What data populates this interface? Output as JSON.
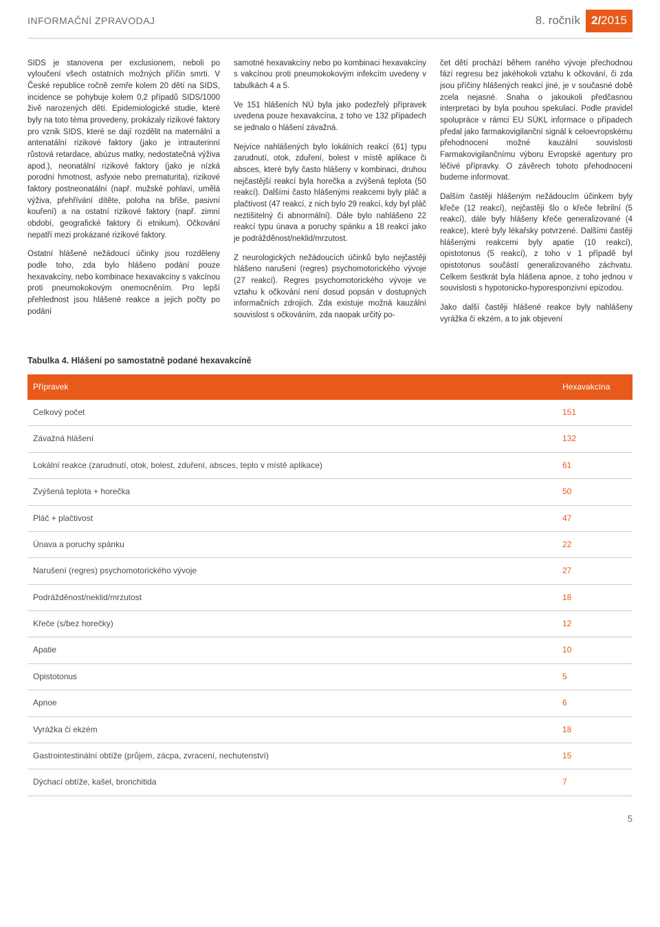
{
  "header": {
    "left": "INFORMAČNÍ ZPRAVODAJ",
    "rocnik": "8. ročník",
    "issue": "2/",
    "year": "2015"
  },
  "columns": {
    "c1": {
      "p1": "SIDS je stanovena per exclusionem, neboli po vyloučení všech ostatních možných příčin smrti. V České republice ročně zemře kolem 20 dětí na SIDS, incidence se pohybuje kolem 0,2 případů SIDS/1000 živě narozených dětí. Epidemiologické studie, které byly na toto téma provedeny, prokázaly rizikové faktory pro vznik SIDS, které se dají rozdělit na maternální a antenatální rizikové faktory (jako je intrauterinní růstová retardace, abúzus matky, nedostatečná výživa apod.), neonatální rizikové faktory (jako je nízká porodní hmotnost, asfyxie nebo prematurita), rizikové faktory postneonatální (např. mužské pohlaví, umělá výživa, přehřívání dítěte, poloha na břiše, pasivní kouření) a na ostatní rizikové faktory (např. zimní období, geografické faktory či etnikum). Očkování nepatří mezi prokázané rizikové faktory.",
      "p2": "Ostatní hlášené nežádoucí účinky jsou rozděleny podle toho, zda bylo hlášeno podání pouze hexavakcíny, nebo kombinace hexavakcíny s vakcínou proti pneumokokovým onemocněním. Pro lepší přehlednost jsou hlášené reakce a jejich počty po podání"
    },
    "c2": {
      "p1": "samotné hexavakcíny nebo po kombinaci hexavakcíny s vakcínou proti pneumokokovým infekcím uvedeny v tabulkách 4 a 5.",
      "p2": "Ve 151 hlášeních NÚ byla jako podezřelý přípravek uvedena pouze hexavakcína, z toho ve 132 případech se jednalo o hlášení závažná.",
      "p3": "Nejvíce nahlášených bylo lokálních reakcí (61) typu zarudnutí, otok, zduření, bolest v místě aplikace či absces, které byly často hlášeny v kombinaci, druhou nejčastější reakcí byla horečka a zvýšená teplota (50 reakcí). Dalšími často hlášenými reakcemi byly pláč a plačtivost (47 reakcí, z nich bylo 29 reakcí, kdy byl pláč neztišitelný či abnormální). Dále bylo nahlášeno 22 reakcí typu únava a poruchy spánku a 18 reakcí jako je podrážděnost/neklid/mrzutost.",
      "p4": "Z neurologických nežádoucích účinků bylo nejčastěji hlášeno narušení (regres) psychomotorického vývoje (27 reakcí). Regres psychomotorického vývoje ve vztahu k očkování není dosud popsán v dostupných informačních zdrojích. Zda existuje možná kauzální souvislost s očkováním, zda naopak určitý po-"
    },
    "c3": {
      "p1": "čet dětí prochází během raného vývoje přechodnou fází regresu bez jakéhokoli vztahu k očkování, či zda jsou příčiny hlášených reakcí jiné, je v současné době zcela nejasné. Snaha o jakoukoli předčasnou interpretaci by byla pouhou spekulací. Podle pravidel spolupráce v rámci EU SÚKL informace o případech předal jako farmakovigilanční signál k celoevropskému přehodnocení možné kauzální souvislosti Farmakovigilančnímu výboru Evropské agentury pro léčivé přípravky. O závěrech tohoto přehodnocení budeme informovat.",
      "p2": "Dalším častěji hlášeným nežádoucím účinkem byly křeče (12 reakcí), nejčastěji šlo o křeče febrilní (5 reakcí), dále byly hlášeny křeče generalizované (4 reakce), které byly lékařsky potvrzené. Dalšími častěji hlášenými reakcemi byly apatie (10 reakcí), opistotonus (5 reakcí), z toho v 1 případě byl opistotonus součástí generalizovaného záchvatu. Celkem šestkrát byla hlášena apnoe, z toho jednou v souvislosti s hypotonicko-hyporesponzivní epizodou.",
      "p3": "Jako další častěji hlášené reakce byly nahlášeny vyrážka či ekzém, a to jak objevení"
    }
  },
  "table": {
    "caption": "Tabulka 4. Hlášení po samostatně podané hexavakcíně",
    "head": {
      "c1": "Přípravek",
      "c2": "Hexavakcína"
    },
    "rows": [
      {
        "label": "Celkový počet",
        "value": "151"
      },
      {
        "label": "Závažná hlášení",
        "value": "132"
      },
      {
        "label": "Lokální reakce (zarudnutí, otok, bolest, zduření, absces, teplo v místě aplikace)",
        "value": "61"
      },
      {
        "label": "Zvýšená teplota + horečka",
        "value": "50"
      },
      {
        "label": "Pláč + plačtivost",
        "value": "47"
      },
      {
        "label": "Únava a poruchy spánku",
        "value": "22"
      },
      {
        "label": "Narušení (regres) psychomotorického vývoje",
        "value": "27"
      },
      {
        "label": "Podrážděnost/neklid/mrzutost",
        "value": "18"
      },
      {
        "label": "Křeče (s/bez horečky)",
        "value": "12"
      },
      {
        "label": "Apatie",
        "value": "10"
      },
      {
        "label": "Opistotonus",
        "value": "5"
      },
      {
        "label": "Apnoe",
        "value": "6"
      },
      {
        "label": "Vyrážka či ekzém",
        "value": "18"
      },
      {
        "label": "Gastrointestinální obtíže (průjem, zácpa, zvracení, nechutenství)",
        "value": "15"
      },
      {
        "label": "Dýchací obtíže, kašel, bronchitida",
        "value": "7"
      }
    ]
  },
  "page_number": "5",
  "colors": {
    "accent": "#e85a1a",
    "text": "#333333",
    "muted": "#6b6b6b",
    "border": "#cccccc",
    "white": "#ffffff"
  }
}
